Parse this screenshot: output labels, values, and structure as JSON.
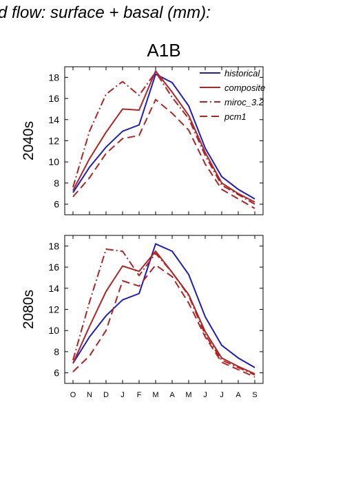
{
  "figure": {
    "title": "d flow: surface + basal (mm):",
    "scenario": "A1B"
  },
  "chart_data": [
    {
      "type": "line",
      "panel": "2040s",
      "ylabel": "2040s",
      "x": [
        "O",
        "N",
        "D",
        "J",
        "F",
        "M",
        "A",
        "M",
        "J",
        "J",
        "A",
        "S"
      ],
      "ylim": [
        5,
        19
      ],
      "yticks": [
        6,
        8,
        10,
        12,
        14,
        16,
        18
      ],
      "legend": "top-right",
      "series": [
        {
          "name": "historical",
          "color": "#1c1cbd",
          "dash": "solid",
          "values": [
            7.1,
            9.5,
            11.4,
            12.9,
            13.5,
            18.3,
            17.5,
            15.3,
            11.3,
            8.6,
            7.4,
            6.5
          ]
        },
        {
          "name": "composite",
          "color": "#b22222",
          "dash": "solid",
          "values": [
            7.3,
            10.3,
            12.8,
            15.0,
            14.9,
            18.6,
            16.6,
            14.4,
            10.9,
            8.0,
            7.0,
            6.2
          ]
        },
        {
          "name": "miroc_3.2",
          "color": "#b22222",
          "dash": "dashdot",
          "values": [
            7.6,
            12.9,
            16.4,
            17.6,
            16.3,
            18.5,
            16.1,
            14.1,
            10.6,
            7.8,
            6.9,
            6.0
          ]
        },
        {
          "name": "pcm1",
          "color": "#b22222",
          "dash": "dash",
          "values": [
            6.7,
            8.5,
            10.8,
            12.2,
            12.5,
            15.9,
            14.6,
            13.0,
            9.8,
            7.4,
            6.5,
            5.6
          ]
        }
      ]
    },
    {
      "type": "line",
      "panel": "2080s",
      "ylabel": "2080s",
      "x": [
        "O",
        "N",
        "D",
        "J",
        "F",
        "M",
        "A",
        "M",
        "J",
        "J",
        "A",
        "S"
      ],
      "ylim": [
        5,
        19
      ],
      "yticks": [
        6,
        8,
        10,
        12,
        14,
        16,
        18
      ],
      "series": [
        {
          "name": "historical",
          "color": "#1c1cbd",
          "dash": "solid",
          "values": [
            6.9,
            9.4,
            11.4,
            12.9,
            13.5,
            18.2,
            17.5,
            15.3,
            11.3,
            8.6,
            7.4,
            6.5
          ]
        },
        {
          "name": "composite",
          "color": "#b22222",
          "dash": "solid",
          "values": [
            6.9,
            10.4,
            13.7,
            16.1,
            15.6,
            17.5,
            15.5,
            13.4,
            9.9,
            7.4,
            6.6,
            5.9
          ]
        },
        {
          "name": "miroc_3.2",
          "color": "#b22222",
          "dash": "dashdot",
          "values": [
            7.2,
            12.7,
            17.7,
            17.5,
            15.2,
            17.3,
            15.5,
            13.3,
            9.6,
            7.2,
            6.5,
            5.8
          ]
        },
        {
          "name": "pcm1",
          "color": "#b22222",
          "dash": "dash",
          "values": [
            6.1,
            7.6,
            10.0,
            14.7,
            14.2,
            16.2,
            15.1,
            12.6,
            9.4,
            7.0,
            6.3,
            5.6
          ]
        }
      ]
    }
  ]
}
